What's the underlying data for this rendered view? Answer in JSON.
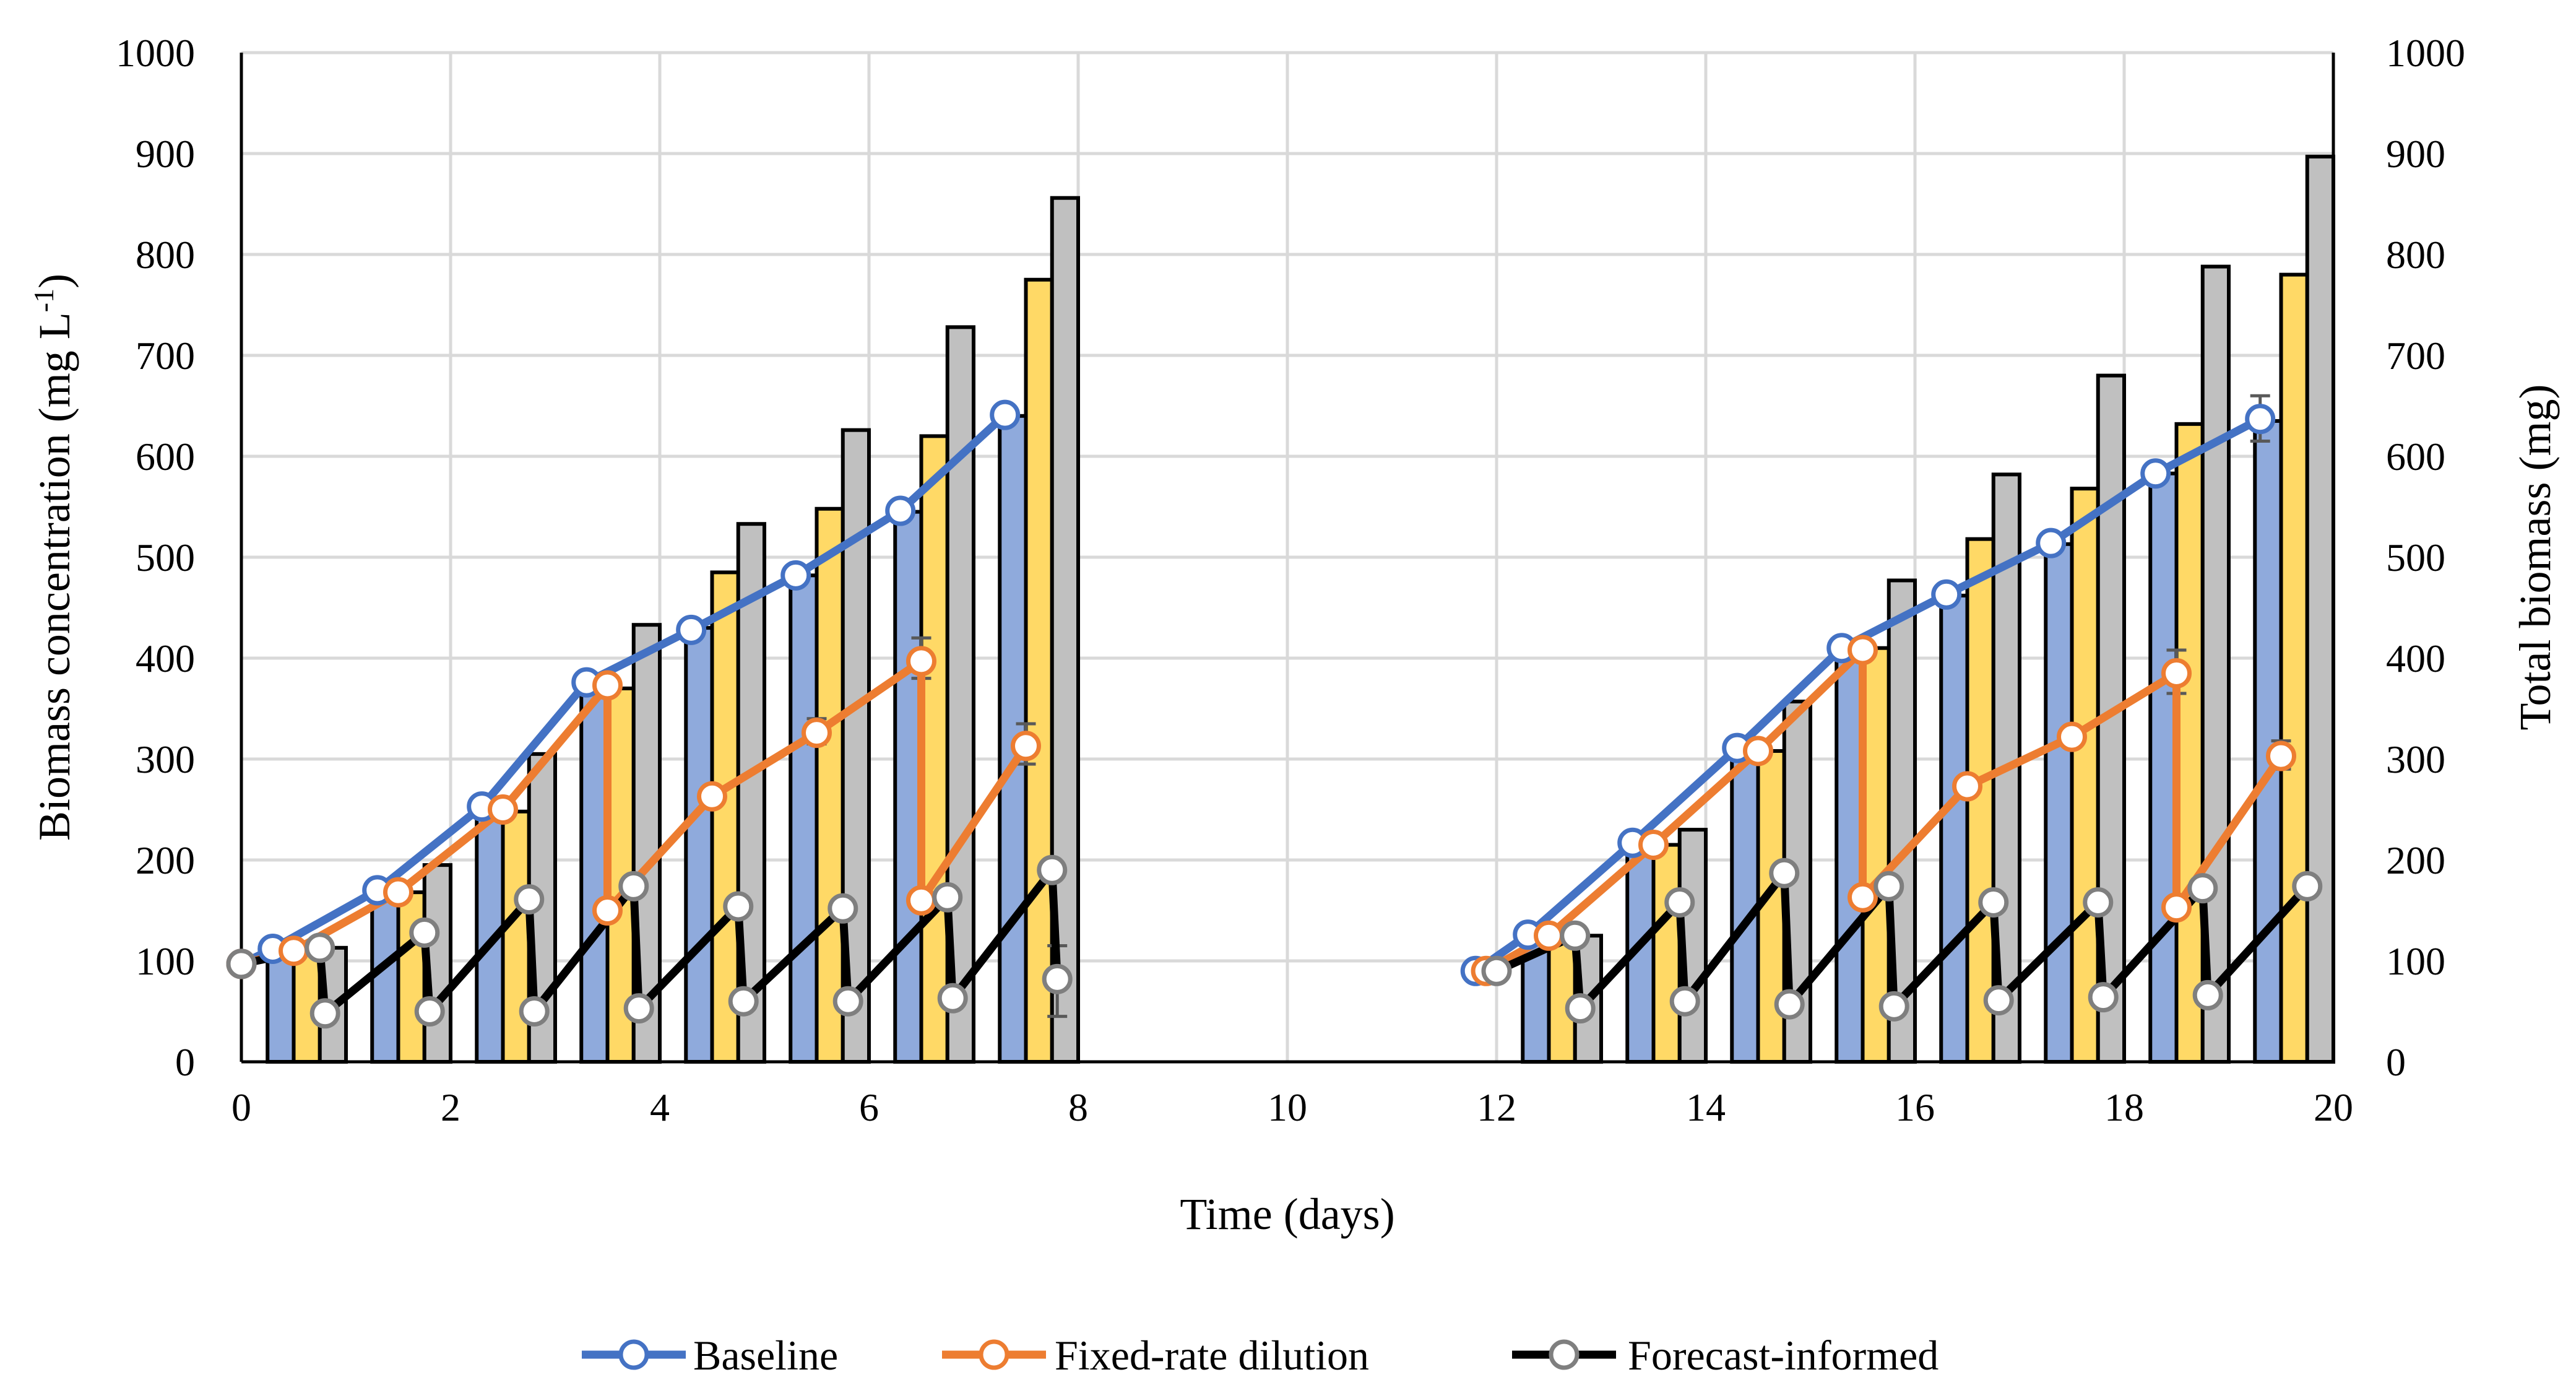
{
  "chart_data": {
    "type": "bar",
    "xlabel": "Time (days)",
    "ylabel_left": {
      "base": "Biomass concentration (mg L",
      "sup": "-1",
      "close": ")"
    },
    "ylabel_right": "Total biomass (mg)",
    "xlim": [
      0,
      20
    ],
    "ylim_left": [
      0,
      1000
    ],
    "ylim_right": [
      0,
      1000
    ],
    "x_ticks": [
      "0",
      "2",
      "4",
      "6",
      "8",
      "10",
      "12",
      "14",
      "16",
      "18",
      "20"
    ],
    "y_ticks": [
      "0",
      "100",
      "200",
      "300",
      "400",
      "500",
      "600",
      "700",
      "800",
      "900",
      "1000"
    ],
    "grid": true,
    "legend_position": "bottom",
    "colors": {
      "baseline_line": "#4472C4",
      "baseline_bar": "#8FAADC",
      "fixed_line": "#ED7D31",
      "fixed_bar": "#FFD966",
      "forecast_line": "#000000",
      "forecast_bar": "#C0C0C0",
      "forecast_marker": "#7F7F7F",
      "grid": "#D9D9D9"
    },
    "bar_width_days": 0.25,
    "bar_series": [
      {
        "key": "baseline",
        "points": [
          {
            "x": 0.25,
            "y": 110
          },
          {
            "x": 1.25,
            "y": 168
          },
          {
            "x": 2.25,
            "y": 252
          },
          {
            "x": 3.25,
            "y": 375
          },
          {
            "x": 4.25,
            "y": 430
          },
          {
            "x": 5.25,
            "y": 482
          },
          {
            "x": 6.25,
            "y": 545
          },
          {
            "x": 7.25,
            "y": 640
          },
          {
            "x": 12.25,
            "y": 125
          },
          {
            "x": 13.25,
            "y": 215
          },
          {
            "x": 14.25,
            "y": 310
          },
          {
            "x": 15.25,
            "y": 410
          },
          {
            "x": 16.25,
            "y": 462
          },
          {
            "x": 17.25,
            "y": 513
          },
          {
            "x": 18.25,
            "y": 583
          },
          {
            "x": 19.25,
            "y": 635
          }
        ]
      },
      {
        "key": "fixed",
        "points": [
          {
            "x": 0.5,
            "y": 110
          },
          {
            "x": 1.5,
            "y": 168
          },
          {
            "x": 2.5,
            "y": 248
          },
          {
            "x": 3.5,
            "y": 370
          },
          {
            "x": 4.5,
            "y": 485
          },
          {
            "x": 5.5,
            "y": 548
          },
          {
            "x": 6.5,
            "y": 620
          },
          {
            "x": 7.5,
            "y": 775
          },
          {
            "x": 12.5,
            "y": 125
          },
          {
            "x": 13.5,
            "y": 215
          },
          {
            "x": 14.5,
            "y": 308
          },
          {
            "x": 15.5,
            "y": 410
          },
          {
            "x": 16.5,
            "y": 518
          },
          {
            "x": 17.5,
            "y": 568
          },
          {
            "x": 18.5,
            "y": 632
          },
          {
            "x": 19.5,
            "y": 780
          }
        ]
      },
      {
        "key": "forecast",
        "points": [
          {
            "x": 0.75,
            "y": 113
          },
          {
            "x": 1.75,
            "y": 195
          },
          {
            "x": 2.75,
            "y": 305
          },
          {
            "x": 3.75,
            "y": 433
          },
          {
            "x": 4.75,
            "y": 533
          },
          {
            "x": 5.75,
            "y": 626
          },
          {
            "x": 6.75,
            "y": 728
          },
          {
            "x": 7.75,
            "y": 856
          },
          {
            "x": 12.75,
            "y": 125
          },
          {
            "x": 13.75,
            "y": 230
          },
          {
            "x": 14.75,
            "y": 357
          },
          {
            "x": 15.75,
            "y": 477
          },
          {
            "x": 16.75,
            "y": 582
          },
          {
            "x": 17.75,
            "y": 680
          },
          {
            "x": 18.75,
            "y": 788
          },
          {
            "x": 19.75,
            "y": 897
          }
        ]
      }
    ],
    "series": [
      {
        "key": "baseline",
        "name": "Baseline",
        "segments": [
          [
            {
              "x": 0,
              "y": 97
            },
            {
              "x": 0.3,
              "y": 112
            },
            {
              "x": 1.3,
              "y": 170
            },
            {
              "x": 2.3,
              "y": 253
            },
            {
              "x": 3.3,
              "y": 376
            },
            {
              "x": 4.3,
              "y": 428
            },
            {
              "x": 5.3,
              "y": 482
            },
            {
              "x": 6.3,
              "y": 546
            },
            {
              "x": 7.3,
              "y": 641
            }
          ],
          [
            {
              "x": 11.8,
              "y": 90
            },
            {
              "x": 12.3,
              "y": 126
            },
            {
              "x": 13.3,
              "y": 217
            },
            {
              "x": 14.3,
              "y": 311
            },
            {
              "x": 15.3,
              "y": 410
            },
            {
              "x": 16.3,
              "y": 463
            },
            {
              "x": 17.3,
              "y": 514
            },
            {
              "x": 18.3,
              "y": 583
            },
            {
              "x": 19.3,
              "y": 637
            }
          ]
        ],
        "error_bars": [
          {
            "x": 19.3,
            "low": 615,
            "high": 660
          }
        ]
      },
      {
        "key": "fixed",
        "name": "Fixed-rate dilution",
        "segments": [
          [
            {
              "x": 0,
              "y": 97
            },
            {
              "x": 0.5,
              "y": 110
            },
            {
              "x": 1.5,
              "y": 168
            },
            {
              "x": 2.5,
              "y": 250
            },
            {
              "x": 3.5,
              "y": 373
            },
            {
              "x": 3.5,
              "y": 150
            },
            {
              "x": 4.5,
              "y": 263
            },
            {
              "x": 5.5,
              "y": 326
            },
            {
              "x": 6.5,
              "y": 397
            },
            {
              "x": 6.5,
              "y": 160
            },
            {
              "x": 7.5,
              "y": 313
            }
          ],
          [
            {
              "x": 11.9,
              "y": 90
            },
            {
              "x": 12.5,
              "y": 125
            },
            {
              "x": 13.5,
              "y": 215
            },
            {
              "x": 14.5,
              "y": 308
            },
            {
              "x": 15.5,
              "y": 408
            },
            {
              "x": 15.5,
              "y": 163
            },
            {
              "x": 16.5,
              "y": 273
            },
            {
              "x": 17.5,
              "y": 322
            },
            {
              "x": 18.5,
              "y": 385
            },
            {
              "x": 18.5,
              "y": 153
            },
            {
              "x": 19.5,
              "y": 303
            }
          ]
        ],
        "error_bars": [
          {
            "x": 5.5,
            "low": 315,
            "high": 340
          },
          {
            "x": 6.5,
            "low": 380,
            "high": 420
          },
          {
            "x": 7.5,
            "low": 295,
            "high": 335
          },
          {
            "x": 18.5,
            "low": 365,
            "high": 408
          },
          {
            "x": 19.5,
            "low": 290,
            "high": 318
          }
        ]
      },
      {
        "key": "forecast",
        "name": "Forecast-informed",
        "segments": [
          [
            {
              "x": 0,
              "y": 97
            },
            {
              "x": 0.75,
              "y": 113
            },
            {
              "x": 0.8,
              "y": 48
            },
            {
              "x": 1.75,
              "y": 128
            },
            {
              "x": 1.8,
              "y": 50
            },
            {
              "x": 2.75,
              "y": 161
            },
            {
              "x": 2.8,
              "y": 50
            },
            {
              "x": 3.75,
              "y": 174
            },
            {
              "x": 3.8,
              "y": 53
            },
            {
              "x": 4.75,
              "y": 154
            },
            {
              "x": 4.8,
              "y": 60
            },
            {
              "x": 5.75,
              "y": 152
            },
            {
              "x": 5.8,
              "y": 60
            },
            {
              "x": 6.75,
              "y": 163
            },
            {
              "x": 6.8,
              "y": 63
            },
            {
              "x": 7.75,
              "y": 190
            },
            {
              "x": 7.8,
              "y": 82
            }
          ],
          [
            {
              "x": 12.0,
              "y": 90
            },
            {
              "x": 12.75,
              "y": 125
            },
            {
              "x": 12.8,
              "y": 53
            },
            {
              "x": 13.75,
              "y": 158
            },
            {
              "x": 13.8,
              "y": 60
            },
            {
              "x": 14.75,
              "y": 187
            },
            {
              "x": 14.8,
              "y": 57
            },
            {
              "x": 15.75,
              "y": 174
            },
            {
              "x": 15.8,
              "y": 55
            },
            {
              "x": 16.75,
              "y": 158
            },
            {
              "x": 16.8,
              "y": 61
            },
            {
              "x": 17.75,
              "y": 158
            },
            {
              "x": 17.8,
              "y": 64
            },
            {
              "x": 18.75,
              "y": 172
            },
            {
              "x": 18.8,
              "y": 66
            },
            {
              "x": 19.75,
              "y": 174
            }
          ]
        ],
        "error_bars": [
          {
            "x": 7.8,
            "low": 45,
            "high": 115
          }
        ]
      }
    ]
  }
}
